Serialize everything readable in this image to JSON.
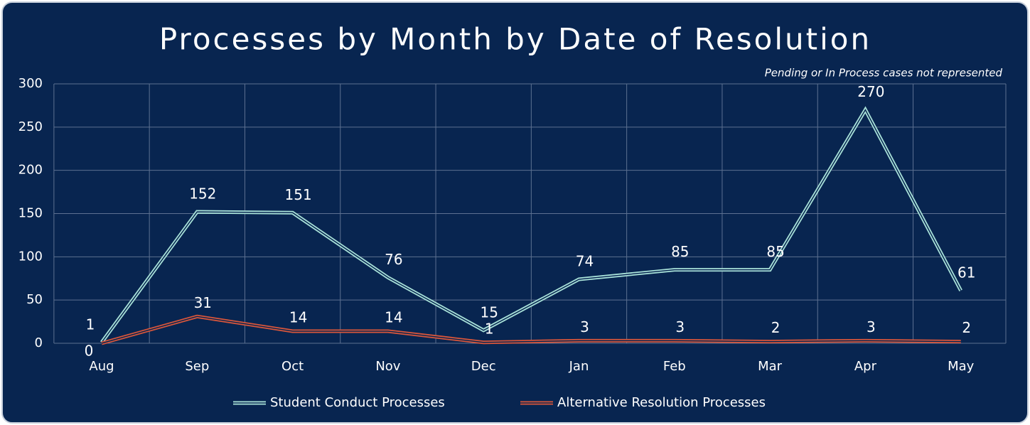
{
  "chart_data": {
    "type": "line",
    "title": "Processes by Month by Date of Resolution",
    "subtitle": "Pending or In Process cases not represented",
    "categories": [
      "Aug",
      "Sep",
      "Oct",
      "Nov",
      "Dec",
      "Jan",
      "Feb",
      "Mar",
      "Apr",
      "May"
    ],
    "series": [
      {
        "name": "Student Conduct Processes",
        "color": "#a9e2d9",
        "values": [
          1,
          152,
          151,
          76,
          15,
          74,
          85,
          85,
          270,
          61
        ]
      },
      {
        "name": "Alternative Resolution Processes",
        "color": "#d9563b",
        "values": [
          0,
          31,
          14,
          14,
          1,
          3,
          3,
          2,
          3,
          2
        ]
      }
    ],
    "ylim": [
      0,
      300
    ],
    "yticks": [
      0,
      50,
      100,
      150,
      200,
      250,
      300
    ],
    "grid": true,
    "legend": "bottom"
  }
}
